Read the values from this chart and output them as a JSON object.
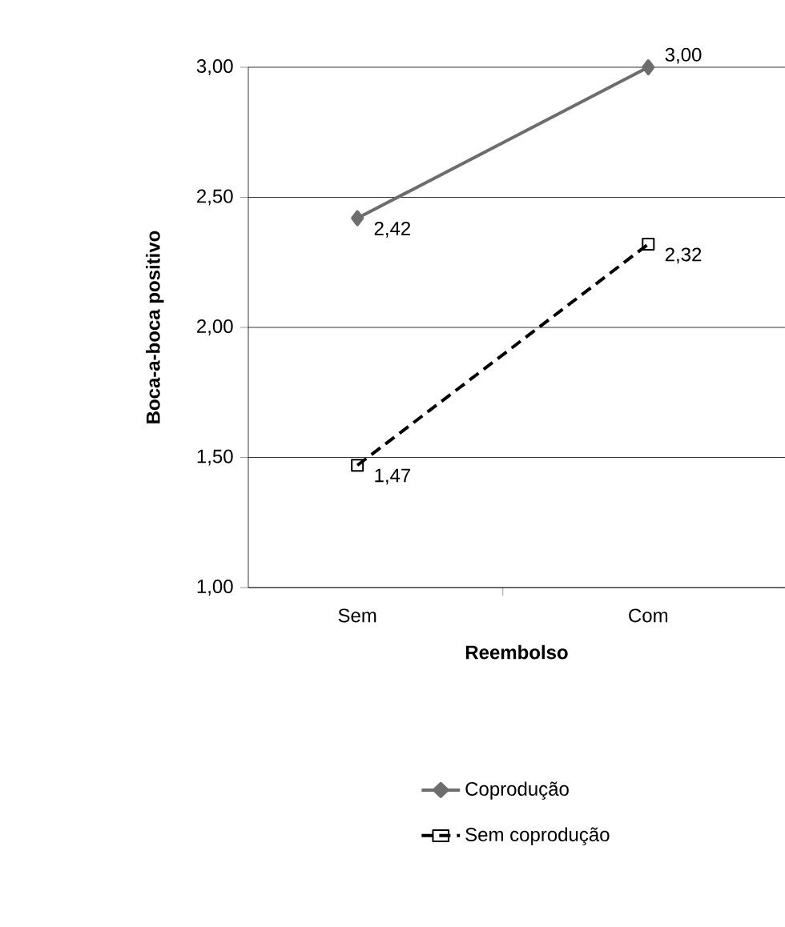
{
  "chart_data": {
    "type": "line",
    "xlabel": "Reembolso",
    "ylabel": "Boca-a-boca positivo",
    "categories": [
      "Sem",
      "Com"
    ],
    "series": [
      {
        "name": "Coprodução",
        "color": "#6d6d6d",
        "values": [
          2.42,
          3.0
        ],
        "value_labels": [
          "2,42",
          "3,00"
        ],
        "marker": "diamond",
        "line_style": "solid"
      },
      {
        "name": "Sem coprodução",
        "color": "#000000",
        "values": [
          1.47,
          2.32
        ],
        "value_labels": [
          "1,47",
          "2,32"
        ],
        "marker": "square",
        "line_style": "dashed"
      }
    ],
    "ylim": [
      1,
      3
    ],
    "yticks": [
      {
        "value": 1,
        "label": "1,00"
      },
      {
        "value": 1.5,
        "label": "1,50"
      },
      {
        "value": 2,
        "label": "2,00"
      },
      {
        "value": 2.5,
        "label": "2,50"
      },
      {
        "value": 3,
        "label": "3,00"
      }
    ],
    "grid": "y",
    "legend": "bottom"
  }
}
